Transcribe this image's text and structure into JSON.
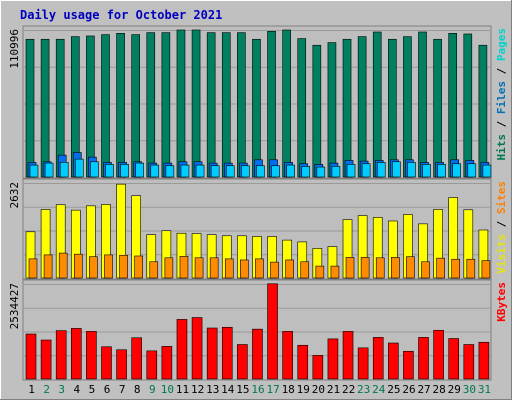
{
  "chart_data": {
    "type": "bar",
    "title": "Daily usage for October 2021",
    "categories": [
      "1",
      "2",
      "3",
      "4",
      "5",
      "6",
      "7",
      "8",
      "9",
      "10",
      "11",
      "12",
      "13",
      "14",
      "15",
      "16",
      "17",
      "18",
      "19",
      "20",
      "21",
      "22",
      "23",
      "24",
      "25",
      "26",
      "27",
      "28",
      "29",
      "30",
      "31"
    ],
    "weekend_days": [
      "2",
      "3",
      "9",
      "10",
      "16",
      "17",
      "23",
      "24",
      "30",
      "31"
    ],
    "panels": [
      {
        "id": "hits",
        "max_label": "110996",
        "ylim": [
          0,
          110996
        ],
        "legend": [
          "Pages",
          "Files",
          "Hits"
        ],
        "legend_colors": [
          "#00d2cc",
          "#0072b4",
          "#007850"
        ],
        "series": [
          {
            "name": "Hits",
            "color": "#008060",
            "values": [
              104000,
              104000,
              104000,
              106000,
              106500,
              107500,
              108500,
              107500,
              109000,
              109000,
              111000,
              111000,
              109000,
              109000,
              109000,
              104000,
              110000,
              111000,
              104500,
              99500,
              101500,
              104000,
              106000,
              109500,
              104000,
              106000,
              109500,
              104000,
              108500,
              108000,
              99500
            ]
          },
          {
            "name": "Files",
            "color": "#0070f0",
            "values": [
              11000,
              11500,
              16500,
              18500,
              15000,
              11000,
              11000,
              11500,
              10500,
              10500,
              11500,
              11500,
              10500,
              10500,
              10500,
              13000,
              13000,
              11000,
              10000,
              9500,
              10500,
              12500,
              12000,
              12500,
              13000,
              13000,
              11000,
              11000,
              13000,
              12500,
              11000
            ]
          },
          {
            "name": "Pages",
            "color": "#00ccff",
            "values": [
              9000,
              10500,
              11000,
              13500,
              11500,
              9500,
              9500,
              10500,
              9000,
              8500,
              9000,
              9000,
              8500,
              8500,
              8500,
              8500,
              8500,
              9000,
              8000,
              7500,
              8000,
              9500,
              10000,
              11000,
              11500,
              11000,
              9500,
              9500,
              10000,
              10000,
              9000
            ]
          }
        ]
      },
      {
        "id": "visits",
        "max_label": "2632",
        "ylim": [
          0,
          2632
        ],
        "legend": [
          "Sites",
          "Visits"
        ],
        "legend_colors": [
          "#ff8000",
          "#e6e600"
        ],
        "series": [
          {
            "name": "Visits",
            "color": "#ffff00",
            "values": [
              1280,
              1900,
              2030,
              1880,
              2000,
              2040,
              2600,
              2280,
              1200,
              1310,
              1240,
              1230,
              1200,
              1170,
              1170,
              1150,
              1150,
              1050,
              1000,
              820,
              870,
              1620,
              1730,
              1680,
              1580,
              1760,
              1500,
              1900,
              2230,
              1890,
              1330
            ]
          },
          {
            "name": "Sites",
            "color": "#ff8c00",
            "values": [
              530,
              640,
              690,
              660,
              590,
              640,
              630,
              610,
              450,
              560,
              600,
              560,
              560,
              530,
              500,
              530,
              440,
              500,
              450,
              330,
              330,
              570,
              570,
              560,
              570,
              590,
              450,
              550,
              520,
              520,
              480
            ]
          }
        ]
      },
      {
        "id": "kbytes",
        "max_label": "2534427",
        "ylim": [
          0,
          2534427
        ],
        "legend": [
          "KBytes"
        ],
        "legend_colors": [
          "#ff0000"
        ],
        "series": [
          {
            "name": "KBytes",
            "color": "#ff0000",
            "values": [
              1200000,
              1040000,
              1290000,
              1350000,
              1270000,
              860000,
              780000,
              1100000,
              750000,
              870000,
              1590000,
              1640000,
              1360000,
              1380000,
              920000,
              1330000,
              2540000,
              1270000,
              900000,
              630000,
              1070000,
              1270000,
              830000,
              1110000,
              960000,
              740000,
              1110000,
              1300000,
              1080000,
              920000,
              980000
            ]
          }
        ]
      }
    ]
  }
}
